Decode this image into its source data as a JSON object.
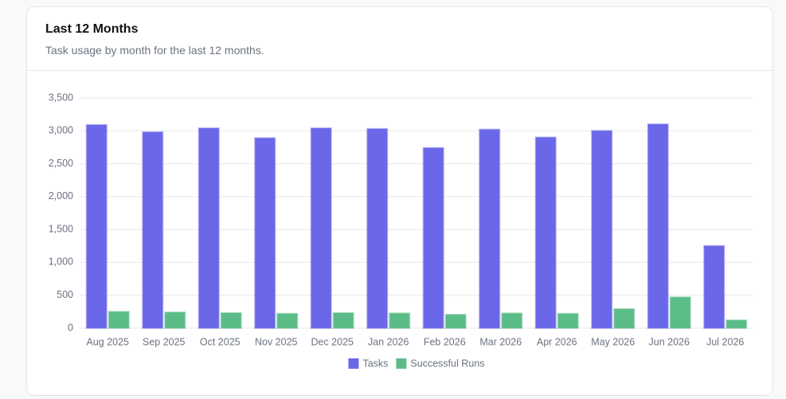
{
  "card": {
    "title": "Last 12 Months",
    "subtitle": "Task usage by month for the last 12 months."
  },
  "chart_data": {
    "type": "bar",
    "categories": [
      "Aug 2025",
      "Sep 2025",
      "Oct 2025",
      "Nov 2025",
      "Dec 2025",
      "Jan 2026",
      "Feb 2026",
      "Mar 2026",
      "Apr 2026",
      "May 2026",
      "Jun 2026",
      "Jul 2026"
    ],
    "series": [
      {
        "name": "Tasks",
        "color": "#6a67e8",
        "values": [
          3090,
          2980,
          3040,
          2890,
          3040,
          3030,
          2740,
          3020,
          2900,
          3000,
          3100,
          1250
        ]
      },
      {
        "name": "Successful Runs",
        "color": "#5cbc88",
        "values": [
          250,
          240,
          230,
          220,
          230,
          225,
          205,
          225,
          220,
          290,
          470,
          120
        ]
      }
    ],
    "ylim": [
      0,
      3500
    ],
    "yticks": [
      0,
      500,
      {
        "value": 1000,
        "label": "1,000"
      },
      {
        "value": 1500,
        "label": "1,500"
      },
      {
        "value": 2000,
        "label": "2,000"
      },
      {
        "value": 2500,
        "label": "2,500"
      },
      {
        "value": 3000,
        "label": "3,000"
      },
      {
        "value": 3500,
        "label": "3,500"
      }
    ],
    "grid": true,
    "legend": "bottom"
  }
}
